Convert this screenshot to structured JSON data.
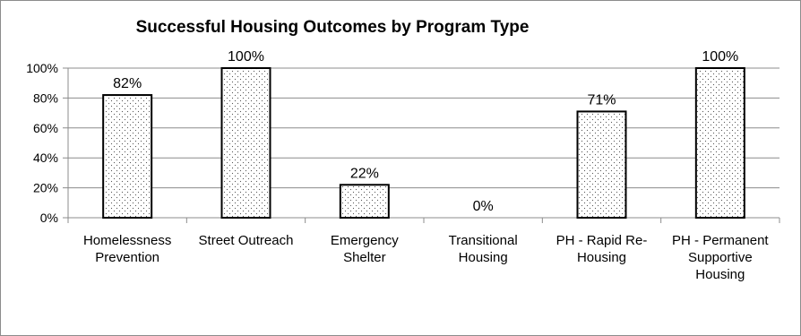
{
  "chart_data": {
    "type": "bar",
    "title": "Successful Housing Outcomes by Program Type",
    "xlabel": "",
    "ylabel": "",
    "ylim": [
      0,
      100
    ],
    "y_ticks": [
      "0%",
      "20%",
      "40%",
      "60%",
      "80%",
      "100%"
    ],
    "grid": true,
    "categories": [
      [
        "Homelessness",
        "Prevention"
      ],
      [
        "Street Outreach"
      ],
      [
        "Emergency",
        "Shelter"
      ],
      [
        "Transitional",
        "Housing"
      ],
      [
        "PH - Rapid Re-",
        "Housing"
      ],
      [
        "PH - Permanent",
        "Supportive",
        "Housing"
      ]
    ],
    "values": [
      82,
      100,
      22,
      0,
      71,
      100
    ],
    "data_labels": [
      "82%",
      "100%",
      "22%",
      "0%",
      "71%",
      "100%"
    ],
    "bar_fill": "dotted",
    "colors": {
      "bar_stroke": "#000000",
      "dot": "#555555",
      "grid": "#8c8c8c"
    }
  }
}
